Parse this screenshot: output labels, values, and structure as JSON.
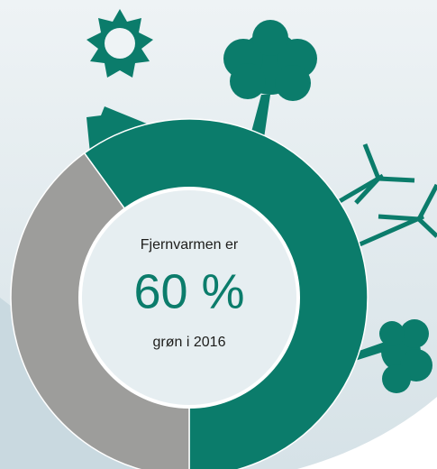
{
  "chart_data": {
    "type": "donut",
    "title": "Fjernvarmen er",
    "values": [
      60,
      40
    ],
    "value_labels": [
      "60 %",
      null
    ],
    "colors": [
      "#0b7c6b",
      "#9d9d9b"
    ],
    "annotation": "grøn i 2016"
  }
}
